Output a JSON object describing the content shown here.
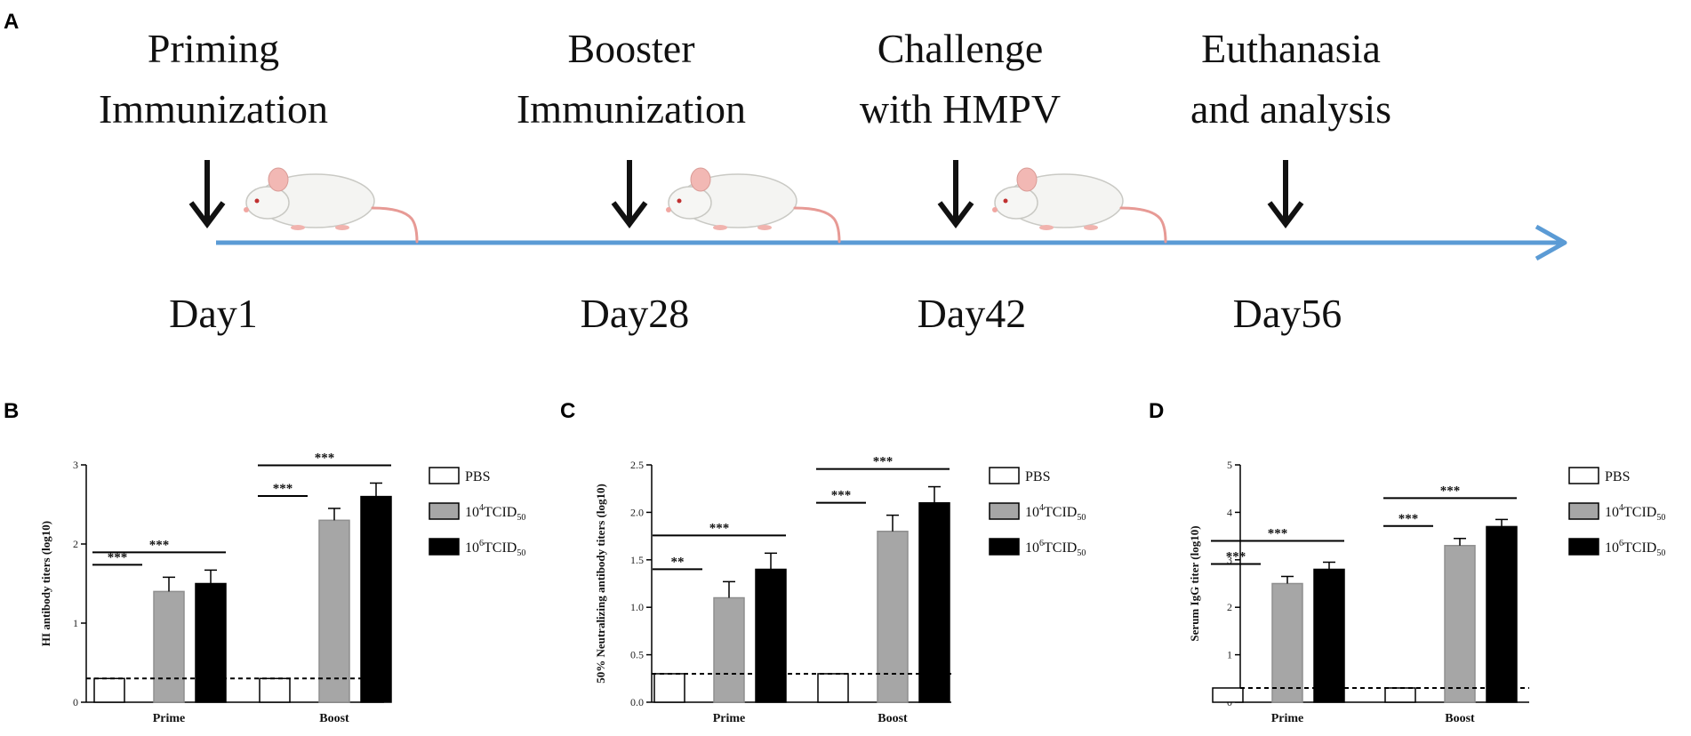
{
  "panels": {
    "a": "A",
    "b": "B",
    "c": "C",
    "d": "D"
  },
  "timeline": {
    "events": [
      {
        "line1": "Priming",
        "line2": "Immunization",
        "day": "Day1",
        "mouse": true
      },
      {
        "line1": "Booster",
        "line2": "Immunization",
        "day": "Day28",
        "mouse": true
      },
      {
        "line1": "Challenge",
        "line2": "with HMPV",
        "day": "Day42",
        "mouse": true
      },
      {
        "line1": "Euthanasia",
        "line2": "and analysis",
        "day": "Day56",
        "mouse": false
      }
    ],
    "arrow_color": "#5b9bd5"
  },
  "legend": [
    {
      "name": "PBS",
      "fill": "#ffffff"
    },
    {
      "name": "10",
      "sup": "4",
      "rest": "TCID",
      "sub": "50",
      "fill": "#a6a6a6"
    },
    {
      "name": "10",
      "sup": "6",
      "rest": "TCID",
      "sub": "50",
      "fill": "#000000"
    }
  ],
  "chart_data": [
    {
      "panel": "B",
      "type": "bar",
      "ylabel": "HI antibody titers (log10)",
      "ylim": [
        0,
        3
      ],
      "yticks": [
        "0",
        "1",
        "2",
        "3"
      ],
      "categories": [
        "Prime",
        "Boost"
      ],
      "detection_limit": 0.3,
      "series": [
        {
          "name": "PBS",
          "values": [
            0.3,
            0.3
          ],
          "errors": [
            0,
            0
          ]
        },
        {
          "name": "10^4TCID50",
          "values": [
            1.4,
            2.3
          ],
          "errors": [
            0.18,
            0.15
          ]
        },
        {
          "name": "10^6TCID50",
          "values": [
            1.5,
            2.6
          ],
          "errors": [
            0.17,
            0.17
          ]
        }
      ],
      "significance": [
        {
          "category": "Prime",
          "from": 0,
          "to": 1,
          "label": "***"
        },
        {
          "category": "Prime",
          "from": 0,
          "to": 2,
          "label": "***"
        },
        {
          "category": "Boost",
          "from": 0,
          "to": 1,
          "label": "***"
        },
        {
          "category": "Boost",
          "from": 0,
          "to": 2,
          "label": "***"
        }
      ]
    },
    {
      "panel": "C",
      "type": "bar",
      "ylabel": "50% Neutralizing antibody titers (log10)",
      "ylim": [
        0,
        2.5
      ],
      "yticks": [
        "0.0",
        "0.5",
        "1.0",
        "1.5",
        "2.0",
        "2.5"
      ],
      "categories": [
        "Prime",
        "Boost"
      ],
      "detection_limit": 0.3,
      "series": [
        {
          "name": "PBS",
          "values": [
            0.3,
            0.3
          ],
          "errors": [
            0,
            0
          ]
        },
        {
          "name": "10^4TCID50",
          "values": [
            1.1,
            1.8
          ],
          "errors": [
            0.17,
            0.17
          ]
        },
        {
          "name": "10^6TCID50",
          "values": [
            1.4,
            2.1
          ],
          "errors": [
            0.17,
            0.17
          ]
        }
      ],
      "significance": [
        {
          "category": "Prime",
          "from": 0,
          "to": 1,
          "label": "**"
        },
        {
          "category": "Prime",
          "from": 0,
          "to": 2,
          "label": "***"
        },
        {
          "category": "Boost",
          "from": 0,
          "to": 1,
          "label": "***"
        },
        {
          "category": "Boost",
          "from": 0,
          "to": 2,
          "label": "***"
        }
      ]
    },
    {
      "panel": "D",
      "type": "bar",
      "ylabel": "Serum IgG titer (log10)",
      "ylim": [
        0,
        5
      ],
      "yticks": [
        "0",
        "1",
        "2",
        "3",
        "4",
        "5"
      ],
      "categories": [
        "Prime",
        "Boost"
      ],
      "detection_limit": 0.3,
      "series": [
        {
          "name": "PBS",
          "values": [
            0.3,
            0.3
          ],
          "errors": [
            0,
            0
          ]
        },
        {
          "name": "10^4TCID50",
          "values": [
            2.5,
            3.3
          ],
          "errors": [
            0.15,
            0.15
          ]
        },
        {
          "name": "10^6TCID50",
          "values": [
            2.8,
            3.7
          ],
          "errors": [
            0.15,
            0.15
          ]
        }
      ],
      "significance": [
        {
          "category": "Prime",
          "from": 0,
          "to": 1,
          "label": "***"
        },
        {
          "category": "Prime",
          "from": 0,
          "to": 2,
          "label": "***"
        },
        {
          "category": "Boost",
          "from": 0,
          "to": 1,
          "label": "***"
        },
        {
          "category": "Boost",
          "from": 0,
          "to": 2,
          "label": "***"
        }
      ]
    }
  ]
}
